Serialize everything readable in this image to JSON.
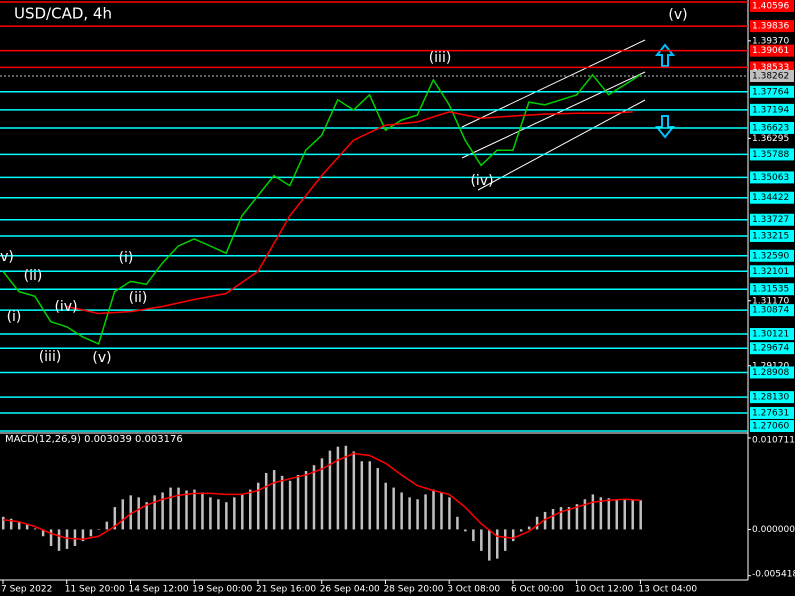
{
  "chart_data": [
    {
      "type": "line",
      "title": "USD/CAD, 4h",
      "xlim": [
        0,
        187
      ],
      "ylim": [
        1.2703,
        1.4066
      ],
      "xticks": [
        {
          "value": 0,
          "label": "7 Sep 2022"
        },
        {
          "value": 16,
          "label": "11 Sep 20:00"
        },
        {
          "value": 32,
          "label": "14 Sep 12:00"
        },
        {
          "value": 48,
          "label": "19 Sep 00:00"
        },
        {
          "value": 64,
          "label": "21 Sep 16:00"
        },
        {
          "value": 80,
          "label": "26 Sep 04:00"
        },
        {
          "value": 96,
          "label": "28 Sep 20:00"
        },
        {
          "value": 112,
          "label": "3 Oct 08:00"
        },
        {
          "value": 128,
          "label": "6 Oct 00:00"
        },
        {
          "value": 144,
          "label": "10 Oct 12:00"
        },
        {
          "value": 160,
          "label": "13 Oct 04:00"
        }
      ],
      "yticks": [
        {
          "value": 1.3937,
          "label": "1.39370"
        },
        {
          "value": 1.36295,
          "label": "1.36295"
        },
        {
          "value": 1.3117,
          "label": "1.31170"
        },
        {
          "value": 1.2912,
          "label": "1.29120"
        }
      ],
      "levels": [
        {
          "value": 1.40596,
          "label": "1.40596",
          "color": "#ff0000"
        },
        {
          "value": 1.39836,
          "label": "1.39836",
          "color": "#ff0000"
        },
        {
          "value": 1.39061,
          "label": "1.39061",
          "color": "#ff0000"
        },
        {
          "value": 1.38533,
          "label": "1.38533",
          "color": "#ff0000"
        },
        {
          "value": 1.37764,
          "label": "1.37764",
          "color": "#00ffff"
        },
        {
          "value": 1.37194,
          "label": "1.37194",
          "color": "#00ffff"
        },
        {
          "value": 1.36623,
          "label": "1.36623",
          "color": "#00ffff"
        },
        {
          "value": 1.35788,
          "label": "1.35788",
          "color": "#00ffff"
        },
        {
          "value": 1.35063,
          "label": "1.35063",
          "color": "#00ffff"
        },
        {
          "value": 1.34422,
          "label": "1.34422",
          "color": "#00ffff"
        },
        {
          "value": 1.33727,
          "label": "1.33727",
          "color": "#00ffff"
        },
        {
          "value": 1.33215,
          "label": "1.33215",
          "color": "#00ffff"
        },
        {
          "value": 1.3259,
          "label": "1.32590",
          "color": "#00ffff"
        },
        {
          "value": 1.32101,
          "label": "1.32101",
          "color": "#00ffff"
        },
        {
          "value": 1.31535,
          "label": "1.31535",
          "color": "#00ffff"
        },
        {
          "value": 1.30874,
          "label": "1.30874",
          "color": "#00ffff"
        },
        {
          "value": 1.30121,
          "label": "1.30121",
          "color": "#00ffff"
        },
        {
          "value": 1.29674,
          "label": "1.29674",
          "color": "#00ffff"
        },
        {
          "value": 1.28908,
          "label": "1.28908",
          "color": "#00ffff"
        },
        {
          "value": 1.2813,
          "label": "1.28130",
          "color": "#00ffff"
        },
        {
          "value": 1.27631,
          "label": "1.27631",
          "color": "#00ffff"
        },
        {
          "value": 1.2706,
          "label": "1.27060",
          "color": "#00ffff"
        }
      ],
      "current_price": {
        "value": 1.38262,
        "label": "1.38262",
        "color": "#c0c0c0"
      },
      "series": [
        {
          "color": "#00d000",
          "x": [
            0,
            4,
            8,
            12,
            16,
            20,
            24,
            28,
            32,
            36,
            40,
            44,
            48,
            52,
            56,
            60,
            64,
            68,
            72,
            76,
            80,
            84,
            88,
            92,
            96,
            100,
            104,
            108,
            112,
            116,
            120,
            124,
            128,
            132,
            136,
            140,
            144,
            148,
            152,
            156,
            160
          ],
          "values": [
            1.321,
            1.3146,
            1.3131,
            1.3051,
            1.3035,
            1.3003,
            1.2981,
            1.3146,
            1.3178,
            1.3169,
            1.3236,
            1.329,
            1.3312,
            1.329,
            1.3267,
            1.3385,
            1.3449,
            1.3512,
            1.348,
            1.3592,
            1.3639,
            1.3751,
            1.3719,
            1.3767,
            1.3655,
            1.3687,
            1.3703,
            1.3814,
            1.3735,
            1.3624,
            1.3544,
            1.3592,
            1.3592,
            1.3744,
            1.3735,
            1.3751,
            1.3767,
            1.383,
            1.3767,
            1.3798,
            1.383
          ]
        },
        {
          "color": "#ff0000",
          "x": [
            16,
            24,
            32,
            40,
            48,
            56,
            64,
            72,
            80,
            88,
            96,
            104,
            112,
            120,
            128,
            136,
            144,
            152,
            158
          ],
          "values": [
            1.3099,
            1.3077,
            1.3083,
            1.3099,
            1.3121,
            1.314,
            1.321,
            1.3385,
            1.3512,
            1.3624,
            1.3671,
            1.3681,
            1.3713,
            1.3693,
            1.37,
            1.3706,
            1.3709,
            1.3709,
            1.3713
          ]
        }
      ],
      "annotations": [
        "(v)",
        "(iii)",
        "(iv)",
        "v)",
        "(i)",
        "(ii)",
        "(ii)",
        "(iv)",
        "(i)",
        "(iii)",
        "(v)"
      ]
    },
    {
      "type": "macd",
      "title": "MACD(12,26,9) 0.003039 0.003176",
      "xlim": [
        0,
        187
      ],
      "ylim": [
        -0.00592,
        0.01094
      ],
      "yticks": [
        {
          "value": 0.010711,
          "label": "0.010711"
        },
        {
          "value": 0,
          "label": "0.000000"
        },
        {
          "value": -0.005418,
          "label": "-0.005418"
        }
      ],
      "series": [
        {
          "type": "bar",
          "color": "#c0c0c0",
          "x": [
            0,
            2,
            4,
            6,
            8,
            10,
            12,
            14,
            16,
            18,
            20,
            22,
            24,
            26,
            28,
            30,
            32,
            34,
            36,
            38,
            40,
            42,
            44,
            46,
            48,
            50,
            52,
            54,
            56,
            58,
            60,
            62,
            64,
            66,
            68,
            70,
            72,
            74,
            76,
            78,
            80,
            82,
            84,
            86,
            88,
            90,
            92,
            94,
            96,
            98,
            100,
            102,
            104,
            106,
            108,
            110,
            112,
            114,
            116,
            118,
            120,
            122,
            124,
            126,
            128,
            130,
            132,
            134,
            136,
            138,
            140,
            142,
            144,
            146,
            148,
            150,
            152,
            154,
            156,
            158,
            160
          ],
          "values": [
            0.00148,
            0.00125,
            0.00091,
            0.00068,
            0.00011,
            -0.0008,
            -0.00194,
            -0.00251,
            -0.00228,
            -0.00194,
            -0.00137,
            -0.0008,
            2e-05,
            0.00091,
            0.00262,
            0.00353,
            0.00399,
            0.00376,
            0.00319,
            0.00399,
            0.00433,
            0.0049,
            0.0049,
            0.00456,
            0.00467,
            0.00433,
            0.00376,
            0.00353,
            0.00319,
            0.00376,
            0.0041,
            0.00467,
            0.00547,
            0.00661,
            0.00695,
            0.00627,
            0.0057,
            0.00638,
            0.00684,
            0.00752,
            0.00832,
            0.00923,
            0.00969,
            0.0098,
            0.00912,
            0.00798,
            0.00798,
            0.00718,
            0.00547,
            0.0049,
            0.00433,
            0.00376,
            0.00353,
            0.0041,
            0.00467,
            0.00433,
            0.00376,
            0.00148,
            -0.00023,
            -0.00137,
            -0.00251,
            -0.00365,
            -0.00342,
            -0.00251,
            -0.00137,
            -0.00023,
            0.00034,
            0.00148,
            0.00205,
            0.00239,
            0.00262,
            0.00262,
            0.00296,
            0.00353,
            0.0041,
            0.00376,
            0.00365,
            0.00353,
            0.00353,
            0.00342,
            0.00342
          ]
        },
        {
          "type": "line",
          "color": "#ff0000",
          "x": [
            0,
            4,
            8,
            12,
            16,
            20,
            24,
            28,
            32,
            36,
            40,
            44,
            48,
            52,
            56,
            60,
            64,
            68,
            72,
            76,
            80,
            84,
            88,
            92,
            96,
            100,
            104,
            108,
            112,
            116,
            120,
            124,
            128,
            132,
            136,
            140,
            144,
            148,
            152,
            156,
            160
          ],
          "values": [
            0.00114,
            0.00091,
            0.00034,
            -0.00046,
            -0.00103,
            -0.00114,
            -0.0008,
            0.00034,
            0.00182,
            0.00285,
            0.00353,
            0.00399,
            0.00422,
            0.00422,
            0.0041,
            0.0041,
            0.00456,
            0.00547,
            0.00593,
            0.00638,
            0.00707,
            0.00809,
            0.00889,
            0.00866,
            0.00775,
            0.00638,
            0.00513,
            0.00456,
            0.0041,
            0.00262,
            0.00068,
            -0.0008,
            -0.00103,
            -0.00023,
            0.00114,
            0.00205,
            0.00262,
            0.00319,
            0.00342,
            0.00353,
            0.00342
          ]
        }
      ]
    }
  ]
}
